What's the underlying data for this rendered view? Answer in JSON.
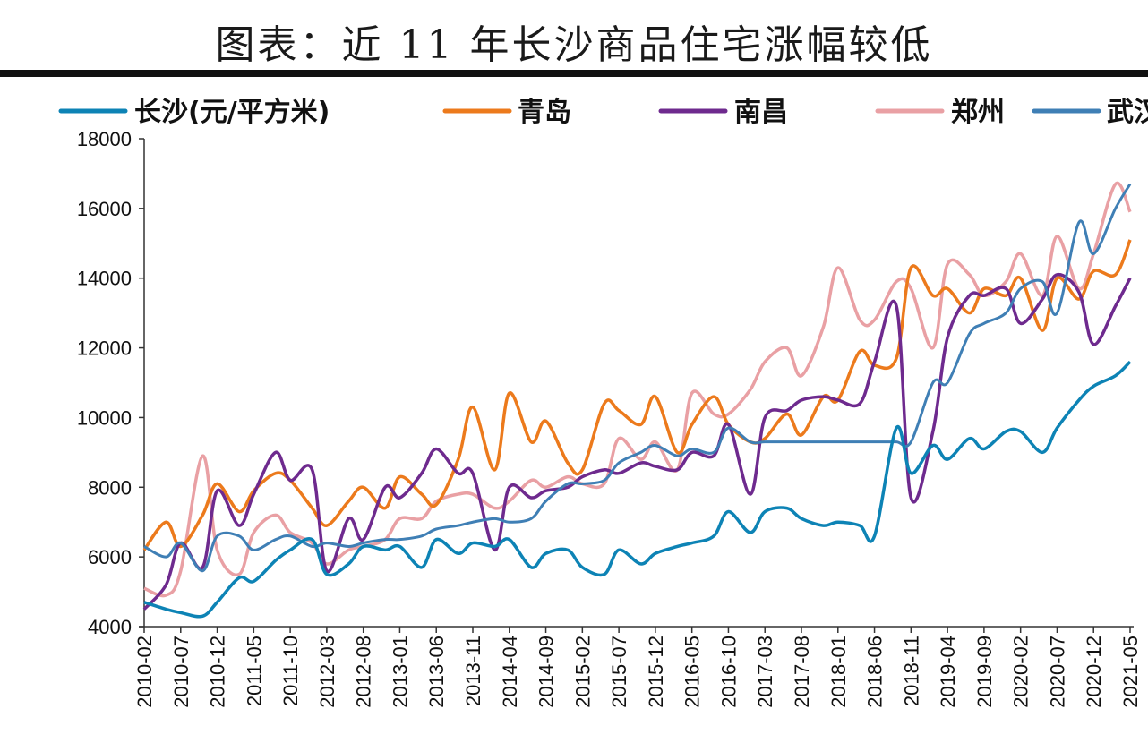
{
  "chart_data": {
    "type": "line",
    "title": "图表：近 11 年长沙商品住宅涨幅较低",
    "xlabel": "",
    "ylabel": "",
    "ylim": [
      4000,
      18000
    ],
    "yticks": [
      "4000",
      "6000",
      "8000",
      "10000",
      "12000",
      "14000",
      "16000",
      "18000"
    ],
    "xticks": [
      "2010-02",
      "2010-07",
      "2010-12",
      "2011-05",
      "2011-10",
      "2012-03",
      "2012-08",
      "2013-01",
      "2013-06",
      "2013-11",
      "2014-04",
      "2014-09",
      "2015-02",
      "2015-07",
      "2015-12",
      "2016-05",
      "2016-10",
      "2017-03",
      "2017-08",
      "2018-01",
      "2018-06",
      "2018-11",
      "2019-04",
      "2019-09",
      "2020-02",
      "2020-07",
      "2020-12",
      "2021-05"
    ],
    "grid": false,
    "legend": "top",
    "x": [
      "2010-02",
      "2010-05",
      "2010-07",
      "2010-10",
      "2010-12",
      "2011-03",
      "2011-05",
      "2011-08",
      "2011-10",
      "2012-01",
      "2012-03",
      "2012-06",
      "2012-08",
      "2012-11",
      "2013-01",
      "2013-04",
      "2013-06",
      "2013-09",
      "2013-11",
      "2014-02",
      "2014-04",
      "2014-07",
      "2014-09",
      "2014-12",
      "2015-02",
      "2015-05",
      "2015-07",
      "2015-10",
      "2015-12",
      "2016-03",
      "2016-05",
      "2016-08",
      "2016-10",
      "2017-01",
      "2017-03",
      "2017-06",
      "2017-08",
      "2017-11",
      "2018-01",
      "2018-04",
      "2018-06",
      "2018-09",
      "2018-11",
      "2019-02",
      "2019-04",
      "2019-07",
      "2019-09",
      "2019-12",
      "2020-02",
      "2020-05",
      "2020-07",
      "2020-10",
      "2020-12",
      "2021-03",
      "2021-05"
    ],
    "series": [
      {
        "name": "长沙(元/平方米)",
        "color": "#0d83b5",
        "values": [
          4700,
          4500,
          4400,
          4300,
          4700,
          5400,
          5300,
          5900,
          6200,
          6500,
          5500,
          5800,
          6300,
          6200,
          6300,
          5700,
          6500,
          6100,
          6400,
          6300,
          6500,
          5700,
          6100,
          6200,
          5700,
          5500,
          6200,
          5800,
          6100,
          6300,
          6400,
          6600,
          7300,
          6700,
          7300,
          7400,
          7100,
          6900,
          7000,
          6900,
          6600,
          9700,
          8400,
          9200,
          8800,
          9400,
          9100,
          9600,
          9600,
          9000,
          9700,
          10500,
          10900,
          11200,
          11600
        ]
      },
      {
        "name": "青岛",
        "color": "#ec7a1c",
        "values": [
          6200,
          7000,
          6300,
          7200,
          8100,
          7300,
          7900,
          8400,
          8200,
          7400,
          6900,
          7600,
          8000,
          7400,
          8300,
          7800,
          7500,
          8800,
          10300,
          8500,
          10700,
          9300,
          9900,
          8700,
          8500,
          10400,
          10200,
          9800,
          10600,
          9000,
          9800,
          10600,
          9800,
          9300,
          9400,
          10100,
          9500,
          10600,
          10500,
          11900,
          11500,
          11700,
          14300,
          13500,
          13700,
          13000,
          13700,
          13500,
          14000,
          12500,
          14000,
          13400,
          14200,
          14100,
          15100
        ]
      },
      {
        "name": "南昌",
        "color": "#6e2a8e",
        "values": [
          4500,
          5200,
          6400,
          5700,
          7900,
          6900,
          7800,
          9000,
          8200,
          8500,
          5600,
          7100,
          6500,
          8000,
          7700,
          8400,
          9100,
          8400,
          8400,
          6200,
          8000,
          7700,
          7900,
          8000,
          8300,
          8500,
          8400,
          8700,
          8600,
          8500,
          9000,
          8900,
          9800,
          7800,
          10000,
          10200,
          10500,
          10600,
          10500,
          10400,
          11600,
          13200,
          7700,
          9600,
          12300,
          13500,
          13500,
          13700,
          12700,
          13400,
          14100,
          13600,
          12100,
          13200,
          14000
        ]
      },
      {
        "name": "郑州",
        "color": "#e9a0a4",
        "values": [
          5100,
          4900,
          5600,
          8900,
          6200,
          5500,
          6700,
          7200,
          6700,
          6400,
          5800,
          6200,
          6300,
          6500,
          7100,
          7100,
          7600,
          7800,
          7800,
          7400,
          7600,
          8200,
          8000,
          8300,
          8100,
          8100,
          9400,
          8800,
          9300,
          8500,
          10700,
          10100,
          10100,
          10800,
          11600,
          12000,
          11200,
          12600,
          14300,
          12800,
          12800,
          13900,
          13700,
          12000,
          14400,
          14100,
          13500,
          13900,
          14700,
          13500,
          15200,
          13700,
          14700,
          16700,
          15900
        ]
      },
      {
        "name": "武汉",
        "color": "#3f7fb5",
        "values": [
          6300,
          6000,
          6400,
          5600,
          6600,
          6600,
          6200,
          6500,
          6600,
          6300,
          6400,
          6300,
          6400,
          6500,
          6500,
          6600,
          6800,
          6900,
          7000,
          7100,
          7000,
          7100,
          7600,
          8100,
          8100,
          8200,
          8700,
          9000,
          9200,
          8900,
          9100,
          9000,
          9700,
          9300,
          9300,
          9300,
          9300,
          9300,
          9300,
          9300,
          9300,
          9300,
          9300,
          11000,
          11000,
          12400,
          12700,
          13000,
          13700,
          13900,
          13000,
          15600,
          14700,
          16000,
          16700
        ]
      }
    ]
  }
}
